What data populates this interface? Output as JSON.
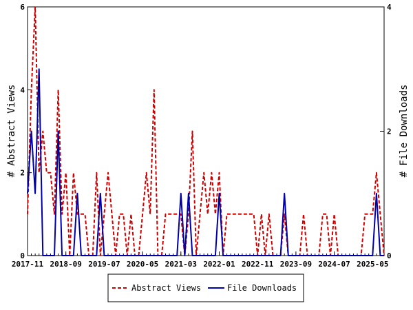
{
  "chart_data": {
    "type": "line",
    "title": "",
    "xlabel": "",
    "ylabel_left": "# Abstract Views",
    "ylabel_right": "# File Downloads",
    "ylim_left": [
      0,
      6
    ],
    "ylim_right": [
      0,
      4
    ],
    "x_start": "2017-11",
    "x_end": "2025-08",
    "x_tick_labels": [
      "2017-11",
      "2018-09",
      "2019-07",
      "2020-05",
      "2021-03",
      "2022-01",
      "2022-11",
      "2023-09",
      "2024-07",
      "2025-05"
    ],
    "y_left_ticks": [
      "0",
      "2",
      "4",
      "6"
    ],
    "y_right_ticks": [
      "0",
      "2",
      "4"
    ],
    "grid": false,
    "legend_position": "bottom",
    "colors": {
      "abstract_views": "#cc0000",
      "file_downloads": "#0000aa"
    },
    "series": [
      {
        "name": "Abstract Views",
        "axis": "left",
        "style": "dashed",
        "points": [
          [
            "2017-11",
            1
          ],
          [
            "2017-12",
            4
          ],
          [
            "2018-01",
            6
          ],
          [
            "2018-02",
            2
          ],
          [
            "2018-03",
            3
          ],
          [
            "2018-04",
            2
          ],
          [
            "2018-05",
            2
          ],
          [
            "2018-06",
            1
          ],
          [
            "2018-07",
            4
          ],
          [
            "2018-08",
            1
          ],
          [
            "2018-09",
            2
          ],
          [
            "2018-10",
            0
          ],
          [
            "2018-11",
            2
          ],
          [
            "2018-12",
            1
          ],
          [
            "2019-01",
            1
          ],
          [
            "2019-02",
            1
          ],
          [
            "2019-03",
            0
          ],
          [
            "2019-04",
            0
          ],
          [
            "2019-05",
            2
          ],
          [
            "2019-06",
            0
          ],
          [
            "2019-07",
            1
          ],
          [
            "2019-08",
            2
          ],
          [
            "2019-09",
            1
          ],
          [
            "2019-10",
            0
          ],
          [
            "2019-11",
            1
          ],
          [
            "2019-12",
            1
          ],
          [
            "2020-01",
            0
          ],
          [
            "2020-02",
            1
          ],
          [
            "2020-03",
            0
          ],
          [
            "2020-04",
            0
          ],
          [
            "2020-05",
            1
          ],
          [
            "2020-06",
            2
          ],
          [
            "2020-07",
            1
          ],
          [
            "2020-08",
            4
          ],
          [
            "2020-09",
            0
          ],
          [
            "2020-10",
            0
          ],
          [
            "2020-11",
            1
          ],
          [
            "2020-12",
            1
          ],
          [
            "2021-01",
            1
          ],
          [
            "2021-02",
            1
          ],
          [
            "2021-03",
            1
          ],
          [
            "2021-04",
            0
          ],
          [
            "2021-05",
            1
          ],
          [
            "2021-06",
            3
          ],
          [
            "2021-07",
            0
          ],
          [
            "2021-08",
            1
          ],
          [
            "2021-09",
            2
          ],
          [
            "2021-10",
            1
          ],
          [
            "2021-11",
            2
          ],
          [
            "2021-12",
            1
          ],
          [
            "2022-01",
            2
          ],
          [
            "2022-02",
            0
          ],
          [
            "2022-03",
            1
          ],
          [
            "2022-04",
            1
          ],
          [
            "2022-05",
            1
          ],
          [
            "2022-06",
            1
          ],
          [
            "2022-07",
            1
          ],
          [
            "2022-08",
            1
          ],
          [
            "2022-09",
            1
          ],
          [
            "2022-10",
            1
          ],
          [
            "2022-11",
            0
          ],
          [
            "2022-12",
            1
          ],
          [
            "2023-01",
            0
          ],
          [
            "2023-02",
            1
          ],
          [
            "2023-03",
            0
          ],
          [
            "2023-04",
            0
          ],
          [
            "2023-05",
            0
          ],
          [
            "2023-06",
            1
          ],
          [
            "2023-07",
            0
          ],
          [
            "2023-08",
            0
          ],
          [
            "2023-09",
            0
          ],
          [
            "2023-10",
            0
          ],
          [
            "2023-11",
            1
          ],
          [
            "2023-12",
            0
          ],
          [
            "2024-01",
            0
          ],
          [
            "2024-02",
            0
          ],
          [
            "2024-03",
            0
          ],
          [
            "2024-04",
            1
          ],
          [
            "2024-05",
            1
          ],
          [
            "2024-06",
            0
          ],
          [
            "2024-07",
            1
          ],
          [
            "2024-08",
            0
          ],
          [
            "2024-09",
            0
          ],
          [
            "2024-10",
            0
          ],
          [
            "2024-11",
            0
          ],
          [
            "2024-12",
            0
          ],
          [
            "2025-01",
            0
          ],
          [
            "2025-02",
            0
          ],
          [
            "2025-03",
            1
          ],
          [
            "2025-04",
            1
          ],
          [
            "2025-05",
            1
          ],
          [
            "2025-06",
            2
          ],
          [
            "2025-07",
            1
          ],
          [
            "2025-08",
            0
          ]
        ]
      },
      {
        "name": "File Downloads",
        "axis": "right",
        "style": "solid",
        "points": [
          [
            "2017-11",
            1
          ],
          [
            "2017-12",
            2
          ],
          [
            "2018-01",
            1
          ],
          [
            "2018-02",
            3
          ],
          [
            "2018-03",
            0
          ],
          [
            "2018-04",
            0
          ],
          [
            "2018-05",
            0
          ],
          [
            "2018-06",
            0
          ],
          [
            "2018-07",
            2
          ],
          [
            "2018-08",
            0
          ],
          [
            "2018-09",
            0
          ],
          [
            "2018-10",
            0
          ],
          [
            "2018-11",
            0
          ],
          [
            "2018-12",
            1
          ],
          [
            "2019-01",
            0
          ],
          [
            "2019-02",
            0
          ],
          [
            "2019-03",
            0
          ],
          [
            "2019-04",
            0
          ],
          [
            "2019-05",
            0
          ],
          [
            "2019-06",
            1
          ],
          [
            "2019-07",
            0
          ],
          [
            "2019-08",
            0
          ],
          [
            "2019-09",
            0
          ],
          [
            "2019-10",
            0
          ],
          [
            "2019-11",
            0
          ],
          [
            "2019-12",
            0
          ],
          [
            "2020-01",
            0
          ],
          [
            "2020-02",
            0
          ],
          [
            "2020-03",
            0
          ],
          [
            "2020-04",
            0
          ],
          [
            "2020-05",
            0
          ],
          [
            "2020-06",
            0
          ],
          [
            "2020-07",
            0
          ],
          [
            "2020-08",
            0
          ],
          [
            "2020-09",
            0
          ],
          [
            "2020-10",
            0
          ],
          [
            "2020-11",
            0
          ],
          [
            "2020-12",
            0
          ],
          [
            "2021-01",
            0
          ],
          [
            "2021-02",
            0
          ],
          [
            "2021-03",
            1
          ],
          [
            "2021-04",
            0
          ],
          [
            "2021-05",
            1
          ],
          [
            "2021-06",
            0
          ],
          [
            "2021-07",
            0
          ],
          [
            "2021-08",
            0
          ],
          [
            "2021-09",
            0
          ],
          [
            "2021-10",
            0
          ],
          [
            "2021-11",
            0
          ],
          [
            "2021-12",
            0
          ],
          [
            "2022-01",
            1
          ],
          [
            "2022-02",
            0
          ],
          [
            "2022-03",
            0
          ],
          [
            "2022-04",
            0
          ],
          [
            "2022-05",
            0
          ],
          [
            "2022-06",
            0
          ],
          [
            "2022-07",
            0
          ],
          [
            "2022-08",
            0
          ],
          [
            "2022-09",
            0
          ],
          [
            "2022-10",
            0
          ],
          [
            "2022-11",
            0
          ],
          [
            "2022-12",
            0
          ],
          [
            "2023-01",
            0
          ],
          [
            "2023-02",
            0
          ],
          [
            "2023-03",
            0
          ],
          [
            "2023-04",
            0
          ],
          [
            "2023-05",
            0
          ],
          [
            "2023-06",
            1
          ],
          [
            "2023-07",
            0
          ],
          [
            "2023-08",
            0
          ],
          [
            "2023-09",
            0
          ],
          [
            "2023-10",
            0
          ],
          [
            "2023-11",
            0
          ],
          [
            "2023-12",
            0
          ],
          [
            "2024-01",
            0
          ],
          [
            "2024-02",
            0
          ],
          [
            "2024-03",
            0
          ],
          [
            "2024-04",
            0
          ],
          [
            "2024-05",
            0
          ],
          [
            "2024-06",
            0
          ],
          [
            "2024-07",
            0
          ],
          [
            "2024-08",
            0
          ],
          [
            "2024-09",
            0
          ],
          [
            "2024-10",
            0
          ],
          [
            "2024-11",
            0
          ],
          [
            "2024-12",
            0
          ],
          [
            "2025-01",
            0
          ],
          [
            "2025-02",
            0
          ],
          [
            "2025-03",
            0
          ],
          [
            "2025-04",
            0
          ],
          [
            "2025-05",
            0
          ],
          [
            "2025-06",
            1
          ],
          [
            "2025-07",
            0
          ],
          [
            "2025-08",
            0
          ]
        ]
      }
    ]
  }
}
